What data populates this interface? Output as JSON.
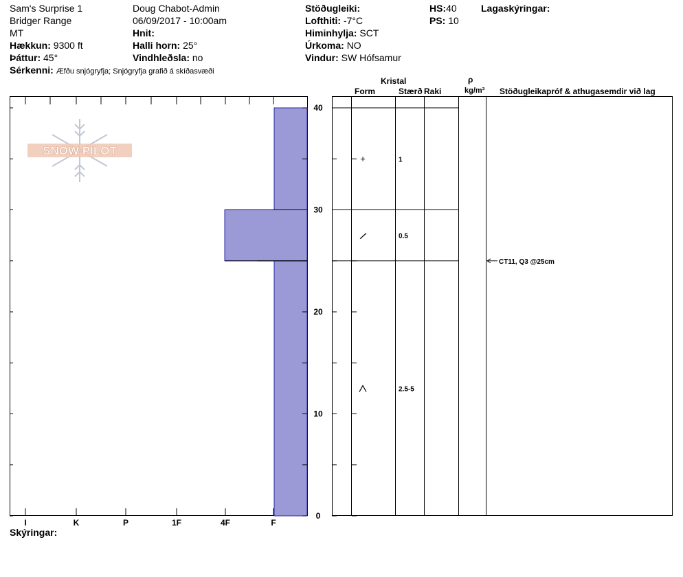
{
  "header": {
    "site": "Sam's Surprise 1",
    "range": "Bridger Range",
    "state": "MT",
    "observer": "Doug Chabot-Admin",
    "datetime": "06/09/2017 - 10:00am",
    "elevation_label": "Hækkun:",
    "elevation_value": "9300 ft",
    "aspect_label": "Þáttur:",
    "aspect_value": "45°",
    "coords_label": "Hnit:",
    "slope_label": "Halli horn:",
    "slope_value": "25°",
    "wind_loading_label": "Vindhleðsla:",
    "wind_loading_value": "no",
    "features_label": "Sérkenni:",
    "features_value": "Æfðu snjógryfja;  Snjógryfja grafið á skíðasvæði",
    "stability_label": "Stöðugleiki:",
    "airtemp_label": "Lofthiti:",
    "airtemp_value": "-7°C",
    "sky_label": "Himinhylja:",
    "sky_value": "SCT",
    "precip_label": "Úrkoma:",
    "precip_value": "NO",
    "wind_label": "Vindur:",
    "wind_value": "SW Hófsamur",
    "hs_label": "HS:",
    "hs_value": "40",
    "ps_label": "PS:",
    "ps_value": "10",
    "layer_notes_label": "Lagaskýringar:"
  },
  "columns": {
    "crystal": "Kristal",
    "form": "Form",
    "size": "Stærð",
    "moisture": "Raki",
    "rho": "ρ",
    "density_unit": "kg/m³",
    "tests": "Stöðugleikapróf & athugasemdir við lag"
  },
  "footer": {
    "notes_label": "Skýringar:"
  },
  "logo": {
    "text": "SNOW PILOT"
  },
  "colors": {
    "fill": "#9b9ad6",
    "edge": "#2a28a8"
  },
  "chart_data": {
    "type": "bar",
    "orientation": "horizontal-steps",
    "xlabel": "",
    "ylabel": "",
    "x_categories": [
      "I",
      "K",
      "P",
      "1F",
      "4F",
      "F"
    ],
    "x_categories_order_note_hardness": [
      "F",
      "4F",
      "1F",
      "P",
      "K",
      "I"
    ],
    "ylim": [
      0,
      40
    ],
    "y_ticks": [
      0,
      10,
      20,
      30,
      40
    ],
    "layers": [
      {
        "bottom": 30,
        "top": 40,
        "hardness": "F",
        "form": "+",
        "size": "1"
      },
      {
        "bottom": 25,
        "top": 30,
        "hardness": "4F",
        "form": "/",
        "size": "0.5"
      },
      {
        "bottom": 0,
        "top": 25,
        "hardness": "F",
        "form": "^",
        "size": "2.5-5"
      }
    ],
    "tests": [
      {
        "depth": 25,
        "label": "CT11, Q3 @25cm"
      }
    ]
  }
}
